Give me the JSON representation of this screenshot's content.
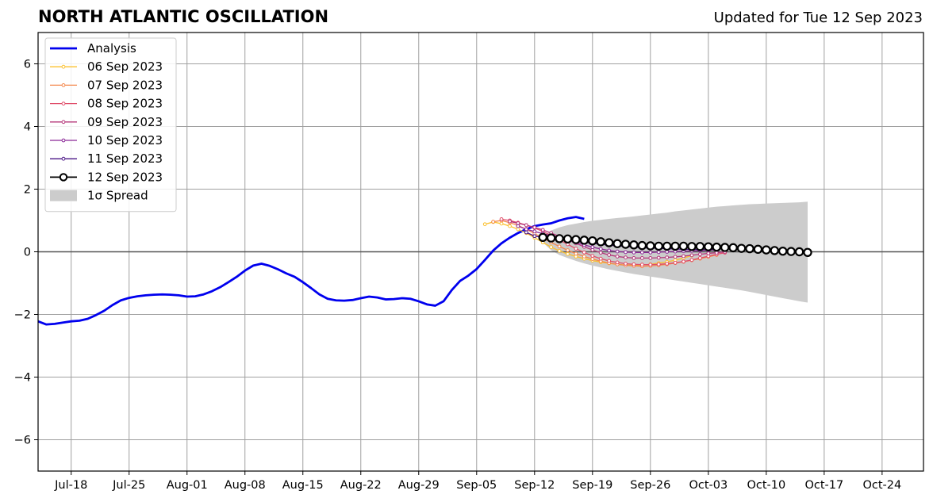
{
  "chart_data": {
    "type": "line",
    "title": "NORTH ATLANTIC OSCILLATION",
    "subtitle": "Updated for Tue 12 Sep 2023",
    "xlabel": "",
    "ylabel": "",
    "xlim": [
      "2023-07-14",
      "2023-10-29"
    ],
    "ylim": [
      -7,
      7
    ],
    "grid": true,
    "legend_position": "top-left",
    "x_ticks": [
      "Jul-18",
      "Jul-25",
      "Aug-01",
      "Aug-08",
      "Aug-15",
      "Aug-22",
      "Aug-29",
      "Sep-05",
      "Sep-12",
      "Sep-19",
      "Sep-26",
      "Oct-03",
      "Oct-10",
      "Oct-17",
      "Oct-24"
    ],
    "x_tick_dates": [
      "2023-07-18",
      "2023-07-25",
      "2023-08-01",
      "2023-08-08",
      "2023-08-15",
      "2023-08-22",
      "2023-08-29",
      "2023-09-05",
      "2023-09-12",
      "2023-09-19",
      "2023-09-26",
      "2023-10-03",
      "2023-10-10",
      "2023-10-17",
      "2023-10-24"
    ],
    "y_ticks": [
      -6,
      -4,
      -2,
      0,
      2,
      4,
      6
    ],
    "y_tick_labels": [
      "−6",
      "−4",
      "−2",
      "0",
      "2",
      "4",
      "6"
    ],
    "analysis": {
      "name": "Analysis",
      "color": "#0000ee",
      "start_date": "2023-07-14",
      "values": [
        -2.22,
        -2.32,
        -2.3,
        -2.26,
        -2.22,
        -2.2,
        -2.14,
        -2.02,
        -1.88,
        -1.7,
        -1.55,
        -1.47,
        -1.42,
        -1.39,
        -1.37,
        -1.36,
        -1.37,
        -1.39,
        -1.43,
        -1.42,
        -1.36,
        -1.26,
        -1.13,
        -0.97,
        -0.8,
        -0.6,
        -0.44,
        -0.38,
        -0.45,
        -0.56,
        -0.69,
        -0.8,
        -0.97,
        -1.16,
        -1.36,
        -1.5,
        -1.55,
        -1.56,
        -1.54,
        -1.48,
        -1.43,
        -1.46,
        -1.52,
        -1.51,
        -1.48,
        -1.5,
        -1.58,
        -1.68,
        -1.72,
        -1.58,
        -1.22,
        -0.93,
        -0.76,
        -0.55,
        -0.26,
        0.04,
        0.27,
        0.45,
        0.6,
        0.72,
        0.82,
        0.87,
        0.91,
        1.0,
        1.07,
        1.11,
        1.05
      ]
    },
    "forecasts": [
      {
        "name": "06 Sep 2023",
        "color": "#fbc02d",
        "start_date": "2023-09-06",
        "values": [
          0.88,
          0.95,
          0.9,
          0.82,
          0.72,
          0.6,
          0.45,
          0.3,
          0.15,
          0.03,
          -0.07,
          -0.15,
          -0.22,
          -0.28,
          -0.33,
          -0.37,
          -0.4,
          -0.42,
          -0.43,
          -0.42,
          -0.4,
          -0.36,
          -0.32,
          -0.27,
          -0.2,
          -0.12
        ]
      },
      {
        "name": "07 Sep 2023",
        "color": "#f4874b",
        "start_date": "2023-09-07",
        "values": [
          0.96,
          1.0,
          0.93,
          0.84,
          0.72,
          0.58,
          0.44,
          0.3,
          0.17,
          0.05,
          -0.06,
          -0.15,
          -0.23,
          -0.3,
          -0.36,
          -0.4,
          -0.43,
          -0.45,
          -0.46,
          -0.45,
          -0.43,
          -0.4,
          -0.36,
          -0.32,
          -0.27,
          -0.22,
          -0.16,
          -0.1
        ]
      },
      {
        "name": "08 Sep 2023",
        "color": "#e04e6a",
        "start_date": "2023-09-08",
        "values": [
          1.04,
          1.0,
          0.93,
          0.85,
          0.76,
          0.65,
          0.52,
          0.38,
          0.24,
          0.1,
          -0.02,
          -0.13,
          -0.22,
          -0.29,
          -0.34,
          -0.38,
          -0.4,
          -0.41,
          -0.41,
          -0.4,
          -0.38,
          -0.35,
          -0.31,
          -0.26,
          -0.2,
          -0.14,
          -0.08,
          -0.03
        ]
      },
      {
        "name": "09 Sep 2023",
        "color": "#b5367a",
        "start_date": "2023-09-09",
        "values": [
          0.97,
          0.91,
          0.85,
          0.78,
          0.7,
          0.6,
          0.49,
          0.38,
          0.27,
          0.16,
          0.06,
          -0.03,
          -0.1,
          -0.15,
          -0.18,
          -0.2,
          -0.2,
          -0.2,
          -0.19,
          -0.18,
          -0.16,
          -0.14,
          -0.11,
          -0.08,
          -0.05,
          -0.03,
          0.0
        ]
      },
      {
        "name": "10 Sep 2023",
        "color": "#8a2796",
        "start_date": "2023-09-10",
        "values": [
          0.82,
          0.72,
          0.65,
          0.58,
          0.52,
          0.45,
          0.38,
          0.3,
          0.22,
          0.15,
          0.09,
          0.04,
          0.01,
          -0.01,
          -0.02,
          -0.02,
          -0.02,
          -0.01,
          0.0,
          0.01,
          0.02,
          0.03,
          0.04,
          0.05,
          0.06
        ]
      },
      {
        "name": "11 Sep 2023",
        "color": "#4a1486",
        "start_date": "2023-09-11",
        "values": [
          0.62,
          0.5,
          0.46,
          0.42,
          0.39,
          0.36,
          0.33,
          0.3,
          0.27,
          0.24,
          0.21,
          0.19,
          0.17,
          0.15,
          0.13,
          0.12,
          0.11,
          0.1,
          0.09,
          0.08,
          0.08,
          0.07,
          0.07,
          0.07
        ]
      },
      {
        "name": "12 Sep 2023",
        "color": "#000000",
        "start_date": "2023-09-13",
        "values": [
          0.46,
          0.44,
          0.42,
          0.41,
          0.39,
          0.37,
          0.35,
          0.32,
          0.29,
          0.26,
          0.24,
          0.22,
          0.2,
          0.19,
          0.18,
          0.18,
          0.18,
          0.18,
          0.17,
          0.17,
          0.16,
          0.15,
          0.14,
          0.13,
          0.11,
          0.1,
          0.08,
          0.06,
          0.04,
          0.02,
          0.01,
          0.0,
          -0.02
        ]
      }
    ],
    "spread": {
      "name": "1σ Spread",
      "color": "#cccccc",
      "start_date": "2023-09-13",
      "upper": [
        0.5,
        0.68,
        0.78,
        0.85,
        0.9,
        0.95,
        0.99,
        1.02,
        1.05,
        1.08,
        1.1,
        1.13,
        1.16,
        1.19,
        1.22,
        1.25,
        1.29,
        1.32,
        1.35,
        1.38,
        1.41,
        1.44,
        1.46,
        1.48,
        1.5,
        1.52,
        1.53,
        1.54,
        1.55,
        1.56,
        1.57,
        1.58,
        1.6
      ],
      "lower": [
        0.3,
        0.05,
        -0.1,
        -0.2,
        -0.29,
        -0.37,
        -0.44,
        -0.5,
        -0.56,
        -0.61,
        -0.66,
        -0.71,
        -0.75,
        -0.79,
        -0.83,
        -0.87,
        -0.91,
        -0.95,
        -0.99,
        -1.03,
        -1.07,
        -1.11,
        -1.15,
        -1.19,
        -1.23,
        -1.28,
        -1.33,
        -1.38,
        -1.43,
        -1.48,
        -1.53,
        -1.58,
        -1.62
      ]
    }
  }
}
